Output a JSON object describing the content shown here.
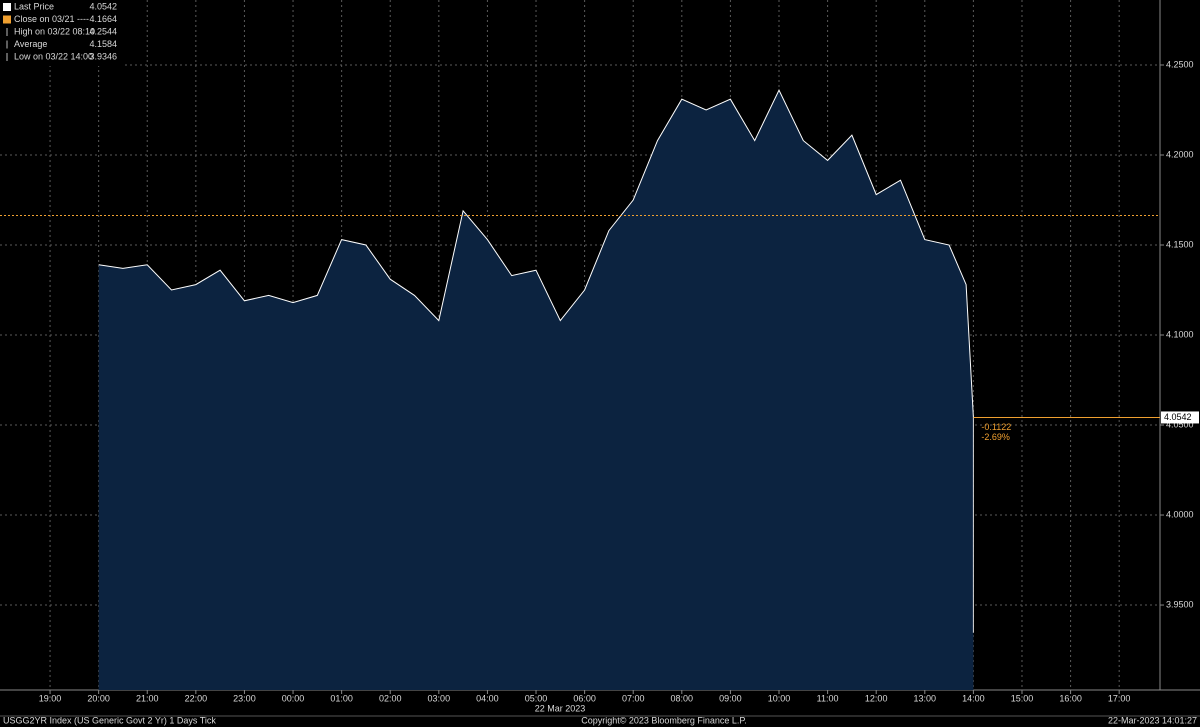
{
  "chart_data": {
    "type": "area",
    "x": [
      20,
      20.5,
      21,
      21.5,
      22,
      22.5,
      23,
      23.5,
      24,
      24.5,
      25,
      25.5,
      26,
      26.5,
      27,
      27.5,
      28,
      28.5,
      29,
      29.5,
      30,
      30.5,
      31,
      31.5,
      32,
      32.5,
      33,
      33.5,
      34,
      34.5,
      35,
      35.5,
      36,
      36.5,
      37,
      37.5,
      37.85,
      38
    ],
    "series": [
      {
        "name": "Last Price",
        "color": "#ffffff",
        "values": [
          4.139,
          4.137,
          4.139,
          4.125,
          4.128,
          4.136,
          4.119,
          4.122,
          4.118,
          4.122,
          4.153,
          4.15,
          4.131,
          4.122,
          4.108,
          4.169,
          4.153,
          4.133,
          4.136,
          4.108,
          4.125,
          4.158,
          4.175,
          4.208,
          4.231,
          4.225,
          4.231,
          4.208,
          4.236,
          4.208,
          4.197,
          4.211,
          4.178,
          4.186,
          4.153,
          4.15,
          4.128,
          4.0542
        ]
      }
    ],
    "legend": [
      {
        "name": "Last Price",
        "value": 4.0542,
        "color": "#ffffff"
      },
      {
        "name": "Close on 03/21 ----",
        "value": 4.1664,
        "color": "#f0a030"
      },
      {
        "name": "High on 03/22 08:10",
        "value": 4.2544,
        "color": "#bbbbbb"
      },
      {
        "name": "Average",
        "value": 4.1584,
        "color": "#bbbbbb"
      },
      {
        "name": "Low on 03/22 14:00",
        "value": 3.9346,
        "color": "#bbbbbb"
      }
    ],
    "change": "-0.1122",
    "change_pct": "-2.69%",
    "xlim": [
      17.97,
      41.84
    ],
    "xticks": [
      {
        "value": 19,
        "label": "19:00"
      },
      {
        "value": 20,
        "label": "20:00"
      },
      {
        "value": 21,
        "label": "21:00"
      },
      {
        "value": 22,
        "label": "22:00"
      },
      {
        "value": 23,
        "label": "23:00"
      },
      {
        "value": 24,
        "label": "00:00"
      },
      {
        "value": 25,
        "label": "01:00"
      },
      {
        "value": 26,
        "label": "02:00"
      },
      {
        "value": 27,
        "label": "03:00"
      },
      {
        "value": 28,
        "label": "04:00"
      },
      {
        "value": 29,
        "label": "05:00"
      },
      {
        "value": 30,
        "label": "06:00"
      },
      {
        "value": 31,
        "label": "07:00"
      },
      {
        "value": 32,
        "label": "08:00"
      },
      {
        "value": 33,
        "label": "09:00"
      },
      {
        "value": 34,
        "label": "10:00"
      },
      {
        "value": 35,
        "label": "11:00"
      },
      {
        "value": 36,
        "label": "12:00"
      },
      {
        "value": 37,
        "label": "13:00"
      },
      {
        "value": 38,
        "label": "14:00"
      },
      {
        "value": 39,
        "label": "15:00"
      },
      {
        "value": 40,
        "label": "16:00"
      },
      {
        "value": 41,
        "label": "17:00"
      }
    ],
    "ylim": [
      3.9028,
      4.2861
    ],
    "yticks": [
      {
        "value": 3.95,
        "label": "3.9500"
      },
      {
        "value": 4.0,
        "label": "4.0000"
      },
      {
        "value": 4.05,
        "label": "4.0500"
      },
      {
        "value": 4.1,
        "label": "4.1000"
      },
      {
        "value": 4.15,
        "label": "4.1500"
      },
      {
        "value": 4.2,
        "label": "4.2000"
      },
      {
        "value": 4.25,
        "label": "4.2500"
      }
    ],
    "grid": true,
    "date_label": "22 Mar 2023",
    "footer_left": "USGG2YR Index (US Generic Govt 2 Yr) 1 Days  Tick",
    "footer_center": "Copyright© 2023 Bloomberg Finance L.P.",
    "footer_right": "22-Mar-2023 14:01:27"
  }
}
